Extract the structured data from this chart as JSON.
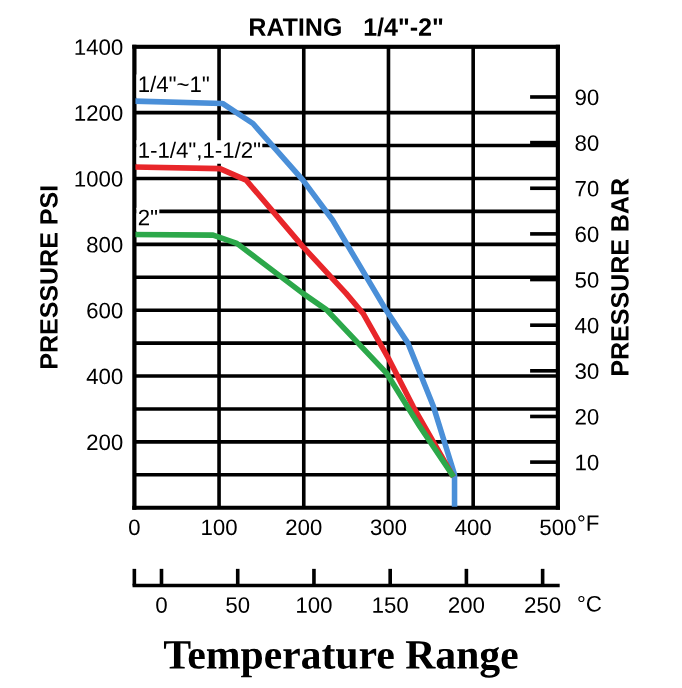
{
  "chart_data": {
    "type": "line",
    "title": "RATING   1/4\"-2\"",
    "xlabel": "°F",
    "x2label": "°C",
    "ylabel": "PRESSURE PSI",
    "y2label": "PRESSURE BAR",
    "annotations": [
      "Temperature Range"
    ],
    "series": [
      {
        "name": "1/4\"~1\"",
        "color": "#4a8fd8",
        "x": [
          0,
          104,
          140,
          199,
          234,
          297,
          323,
          353,
          378,
          378
        ],
        "values": [
          1235,
          1228,
          1167,
          995,
          874,
          601,
          500,
          308,
          101,
          0
        ]
      },
      {
        "name": "1-1/4\",1-1/2\"",
        "color": "#e8262a",
        "x": [
          0,
          101,
          132,
          199,
          250,
          270,
          301,
          329,
          375
        ],
        "values": [
          1035,
          1030,
          995,
          793,
          651,
          590,
          449,
          308,
          101
        ]
      },
      {
        "name": "2\"",
        "color": "#2ca84a",
        "x": [
          0,
          93,
          121,
          199,
          227,
          298,
          337,
          375
        ],
        "values": [
          830,
          828,
          803,
          651,
          601,
          408,
          247,
          101
        ]
      }
    ],
    "xlim": [
      0,
      500
    ],
    "xticks": [
      0,
      100,
      200,
      300,
      400,
      500
    ],
    "ylim": [
      0,
      1400
    ],
    "yticks": [
      {
        "value": 100,
        "label": null
      },
      200,
      {
        "value": 300,
        "label": null
      },
      400,
      {
        "value": 500,
        "label": null
      },
      600,
      {
        "value": 700,
        "label": null
      },
      800,
      {
        "value": 900,
        "label": null
      },
      1000,
      {
        "value": 1100,
        "label": null
      },
      1200,
      1400
    ],
    "y2lim": [
      0,
      101
    ],
    "y2ticks": [
      10,
      20,
      30,
      40,
      50,
      60,
      70,
      80,
      90
    ],
    "x2lim": [
      -17.8,
      260
    ],
    "x2ticks": [
      {
        "value": -17.8,
        "label": null
      },
      0,
      50,
      100,
      150,
      200,
      250
    ],
    "grid": true,
    "legend": false,
    "marker": "none",
    "line_style": "solid"
  }
}
